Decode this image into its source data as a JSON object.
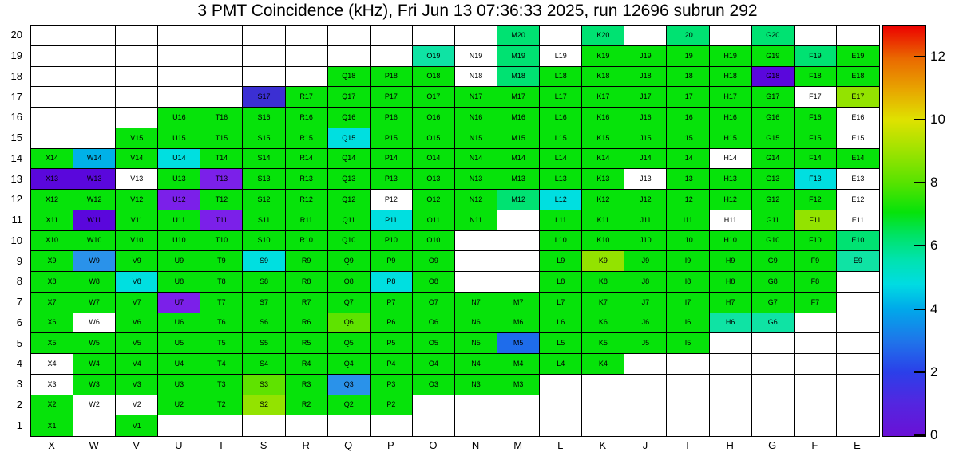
{
  "title": "3 PMT Coincidence (kHz), Fri Jun 13 07:36:33 2025, run 12696 subrun 292",
  "chart_data": {
    "type": "heatmap",
    "title": "3 PMT Coincidence (kHz), Fri Jun 13 07:36:33 2025, run 12696 subrun 292",
    "value_unit": "kHz",
    "columns": [
      "X",
      "W",
      "V",
      "U",
      "T",
      "S",
      "R",
      "Q",
      "P",
      "O",
      "N",
      "M",
      "L",
      "K",
      "J",
      "I",
      "H",
      "G",
      "F",
      "E"
    ],
    "rows": [
      20,
      19,
      18,
      17,
      16,
      15,
      14,
      13,
      12,
      11,
      10,
      9,
      8,
      7,
      6,
      5,
      4,
      3,
      2,
      1
    ],
    "palette": {
      "g": {
        "hex": "#06e30a",
        "value": 7.0
      },
      "sg": {
        "hex": "#00e272",
        "value": 6.0
      },
      "aq": {
        "hex": "#0fe3a4",
        "value": 5.4
      },
      "cy": {
        "hex": "#00dfe0",
        "value": 4.5
      },
      "lb": {
        "hex": "#00b1e8",
        "value": 3.8
      },
      "sb": {
        "hex": "#2a92ea",
        "value": 3.1
      },
      "bl": {
        "hex": "#1e6ceb",
        "value": 2.6
      },
      "ind": {
        "hex": "#3b2fd3",
        "value": 1.4
      },
      "pu": {
        "hex": "#7b20e9",
        "value": 1.0
      },
      "vi": {
        "hex": "#5a07dc",
        "value": 0.6
      },
      "yg": {
        "hex": "#93e300",
        "value": 8.6
      },
      "yg2": {
        "hex": "#5fe300",
        "value": 8.0
      },
      "w": {
        "hex": "#ffffff",
        "value": 0.0
      }
    },
    "cells": [
      [
        "M20",
        "sg"
      ],
      [
        "K20",
        "sg"
      ],
      [
        "I20",
        "sg"
      ],
      [
        "G20",
        "sg"
      ],
      [
        "O19",
        "aq"
      ],
      [
        "N19",
        "w"
      ],
      [
        "M19",
        "sg"
      ],
      [
        "L19",
        "w"
      ],
      [
        "K19",
        "g"
      ],
      [
        "J19",
        "g"
      ],
      [
        "I19",
        "g"
      ],
      [
        "H19",
        "g"
      ],
      [
        "G19",
        "g"
      ],
      [
        "F19",
        "sg"
      ],
      [
        "E19",
        "g"
      ],
      [
        "Q18",
        "g"
      ],
      [
        "P18",
        "g"
      ],
      [
        "O18",
        "g"
      ],
      [
        "N18",
        "w"
      ],
      [
        "M18",
        "sg"
      ],
      [
        "L18",
        "g"
      ],
      [
        "K18",
        "g"
      ],
      [
        "J18",
        "g"
      ],
      [
        "I18",
        "g"
      ],
      [
        "H18",
        "g"
      ],
      [
        "G18",
        "vi"
      ],
      [
        "F18",
        "g"
      ],
      [
        "E18",
        "g"
      ],
      [
        "S17",
        "ind"
      ],
      [
        "R17",
        "g"
      ],
      [
        "Q17",
        "g"
      ],
      [
        "P17",
        "g"
      ],
      [
        "O17",
        "g"
      ],
      [
        "N17",
        "g"
      ],
      [
        "M17",
        "g"
      ],
      [
        "L17",
        "g"
      ],
      [
        "K17",
        "g"
      ],
      [
        "J17",
        "g"
      ],
      [
        "I17",
        "g"
      ],
      [
        "H17",
        "g"
      ],
      [
        "G17",
        "g"
      ],
      [
        "F17",
        "w"
      ],
      [
        "E17",
        "yg"
      ],
      [
        "U16",
        "g"
      ],
      [
        "T16",
        "g"
      ],
      [
        "S16",
        "g"
      ],
      [
        "R16",
        "g"
      ],
      [
        "Q16",
        "g"
      ],
      [
        "P16",
        "g"
      ],
      [
        "O16",
        "g"
      ],
      [
        "N16",
        "g"
      ],
      [
        "M16",
        "g"
      ],
      [
        "L16",
        "g"
      ],
      [
        "K16",
        "g"
      ],
      [
        "J16",
        "g"
      ],
      [
        "I16",
        "g"
      ],
      [
        "H16",
        "g"
      ],
      [
        "G16",
        "g"
      ],
      [
        "F16",
        "g"
      ],
      [
        "E16",
        "w"
      ],
      [
        "V15",
        "g"
      ],
      [
        "U15",
        "g"
      ],
      [
        "T15",
        "g"
      ],
      [
        "S15",
        "g"
      ],
      [
        "R15",
        "g"
      ],
      [
        "Q15",
        "cy"
      ],
      [
        "P15",
        "g"
      ],
      [
        "O15",
        "g"
      ],
      [
        "N15",
        "g"
      ],
      [
        "M15",
        "g"
      ],
      [
        "L15",
        "g"
      ],
      [
        "K15",
        "g"
      ],
      [
        "J15",
        "g"
      ],
      [
        "I15",
        "g"
      ],
      [
        "H15",
        "g"
      ],
      [
        "G15",
        "g"
      ],
      [
        "F15",
        "g"
      ],
      [
        "E15",
        "w"
      ],
      [
        "X14",
        "g"
      ],
      [
        "W14",
        "lb"
      ],
      [
        "V14",
        "g"
      ],
      [
        "U14",
        "cy"
      ],
      [
        "T14",
        "g"
      ],
      [
        "S14",
        "g"
      ],
      [
        "R14",
        "g"
      ],
      [
        "Q14",
        "g"
      ],
      [
        "P14",
        "g"
      ],
      [
        "O14",
        "g"
      ],
      [
        "N14",
        "g"
      ],
      [
        "M14",
        "g"
      ],
      [
        "L14",
        "g"
      ],
      [
        "K14",
        "g"
      ],
      [
        "J14",
        "g"
      ],
      [
        "I14",
        "g"
      ],
      [
        "H14",
        "w"
      ],
      [
        "G14",
        "g"
      ],
      [
        "F14",
        "g"
      ],
      [
        "E14",
        "g"
      ],
      [
        "X13",
        "vi"
      ],
      [
        "W13",
        "vi"
      ],
      [
        "V13",
        "w"
      ],
      [
        "U13",
        "g"
      ],
      [
        "T13",
        "pu"
      ],
      [
        "S13",
        "g"
      ],
      [
        "R13",
        "g"
      ],
      [
        "Q13",
        "g"
      ],
      [
        "P13",
        "g"
      ],
      [
        "O13",
        "g"
      ],
      [
        "N13",
        "g"
      ],
      [
        "M13",
        "g"
      ],
      [
        "L13",
        "g"
      ],
      [
        "K13",
        "g"
      ],
      [
        "J13",
        "w"
      ],
      [
        "I13",
        "g"
      ],
      [
        "H13",
        "g"
      ],
      [
        "G13",
        "g"
      ],
      [
        "F13",
        "cy"
      ],
      [
        "E13",
        "w"
      ],
      [
        "X12",
        "g"
      ],
      [
        "W12",
        "g"
      ],
      [
        "V12",
        "g"
      ],
      [
        "U12",
        "pu"
      ],
      [
        "T12",
        "g"
      ],
      [
        "S12",
        "g"
      ],
      [
        "R12",
        "g"
      ],
      [
        "Q12",
        "g"
      ],
      [
        "P12",
        "w"
      ],
      [
        "O12",
        "g"
      ],
      [
        "N12",
        "g"
      ],
      [
        "M12",
        "sg"
      ],
      [
        "L12",
        "cy"
      ],
      [
        "K12",
        "g"
      ],
      [
        "J12",
        "g"
      ],
      [
        "I12",
        "g"
      ],
      [
        "H12",
        "g"
      ],
      [
        "G12",
        "g"
      ],
      [
        "F12",
        "g"
      ],
      [
        "E12",
        "w"
      ],
      [
        "X11",
        "g"
      ],
      [
        "W11",
        "vi"
      ],
      [
        "V11",
        "g"
      ],
      [
        "U11",
        "g"
      ],
      [
        "T11",
        "pu"
      ],
      [
        "S11",
        "g"
      ],
      [
        "R11",
        "g"
      ],
      [
        "Q11",
        "g"
      ],
      [
        "P11",
        "cy"
      ],
      [
        "O11",
        "g"
      ],
      [
        "N11",
        "g"
      ],
      [
        "L11",
        "g"
      ],
      [
        "K11",
        "g"
      ],
      [
        "J11",
        "g"
      ],
      [
        "I11",
        "g"
      ],
      [
        "H11",
        "w"
      ],
      [
        "G11",
        "g"
      ],
      [
        "F11",
        "yg"
      ],
      [
        "E11",
        "w"
      ],
      [
        "X10",
        "g"
      ],
      [
        "W10",
        "g"
      ],
      [
        "V10",
        "g"
      ],
      [
        "U10",
        "g"
      ],
      [
        "T10",
        "g"
      ],
      [
        "S10",
        "g"
      ],
      [
        "R10",
        "g"
      ],
      [
        "Q10",
        "g"
      ],
      [
        "P10",
        "g"
      ],
      [
        "O10",
        "g"
      ],
      [
        "L10",
        "g"
      ],
      [
        "K10",
        "g"
      ],
      [
        "J10",
        "g"
      ],
      [
        "I10",
        "g"
      ],
      [
        "H10",
        "g"
      ],
      [
        "G10",
        "g"
      ],
      [
        "F10",
        "g"
      ],
      [
        "E10",
        "sg"
      ],
      [
        "X9",
        "g"
      ],
      [
        "W9",
        "sb"
      ],
      [
        "V9",
        "g"
      ],
      [
        "U9",
        "g"
      ],
      [
        "T9",
        "g"
      ],
      [
        "S9",
        "cy"
      ],
      [
        "R9",
        "g"
      ],
      [
        "Q9",
        "g"
      ],
      [
        "P9",
        "g"
      ],
      [
        "O9",
        "g"
      ],
      [
        "L9",
        "g"
      ],
      [
        "K9",
        "yg"
      ],
      [
        "J9",
        "g"
      ],
      [
        "I9",
        "g"
      ],
      [
        "H9",
        "g"
      ],
      [
        "G9",
        "g"
      ],
      [
        "F9",
        "g"
      ],
      [
        "E9",
        "aq"
      ],
      [
        "X8",
        "g"
      ],
      [
        "W8",
        "g"
      ],
      [
        "V8",
        "cy"
      ],
      [
        "U8",
        "g"
      ],
      [
        "T8",
        "g"
      ],
      [
        "S8",
        "g"
      ],
      [
        "R8",
        "g"
      ],
      [
        "Q8",
        "g"
      ],
      [
        "P8",
        "cy"
      ],
      [
        "O8",
        "g"
      ],
      [
        "L8",
        "g"
      ],
      [
        "K8",
        "g"
      ],
      [
        "J8",
        "g"
      ],
      [
        "I8",
        "g"
      ],
      [
        "H8",
        "g"
      ],
      [
        "G8",
        "g"
      ],
      [
        "F8",
        "g"
      ],
      [
        "X7",
        "g"
      ],
      [
        "W7",
        "g"
      ],
      [
        "V7",
        "g"
      ],
      [
        "U7",
        "pu"
      ],
      [
        "T7",
        "g"
      ],
      [
        "S7",
        "g"
      ],
      [
        "R7",
        "g"
      ],
      [
        "Q7",
        "g"
      ],
      [
        "P7",
        "g"
      ],
      [
        "O7",
        "g"
      ],
      [
        "N7",
        "g"
      ],
      [
        "M7",
        "g"
      ],
      [
        "L7",
        "g"
      ],
      [
        "K7",
        "g"
      ],
      [
        "J7",
        "g"
      ],
      [
        "I7",
        "g"
      ],
      [
        "H7",
        "g"
      ],
      [
        "G7",
        "g"
      ],
      [
        "F7",
        "g"
      ],
      [
        "X6",
        "g"
      ],
      [
        "W6",
        "w"
      ],
      [
        "V6",
        "g"
      ],
      [
        "U6",
        "g"
      ],
      [
        "T6",
        "g"
      ],
      [
        "S6",
        "g"
      ],
      [
        "R6",
        "g"
      ],
      [
        "Q6",
        "yg2"
      ],
      [
        "P6",
        "g"
      ],
      [
        "O6",
        "g"
      ],
      [
        "N6",
        "g"
      ],
      [
        "M6",
        "g"
      ],
      [
        "L6",
        "g"
      ],
      [
        "K6",
        "g"
      ],
      [
        "J6",
        "g"
      ],
      [
        "I6",
        "g"
      ],
      [
        "H6",
        "aq"
      ],
      [
        "G6",
        "aq"
      ],
      [
        "X5",
        "g"
      ],
      [
        "W5",
        "g"
      ],
      [
        "V5",
        "g"
      ],
      [
        "U5",
        "g"
      ],
      [
        "T5",
        "g"
      ],
      [
        "S5",
        "g"
      ],
      [
        "R5",
        "g"
      ],
      [
        "Q5",
        "g"
      ],
      [
        "P5",
        "g"
      ],
      [
        "O5",
        "g"
      ],
      [
        "N5",
        "g"
      ],
      [
        "M5",
        "bl"
      ],
      [
        "L5",
        "g"
      ],
      [
        "K5",
        "g"
      ],
      [
        "J5",
        "g"
      ],
      [
        "I5",
        "g"
      ],
      [
        "X4",
        "w"
      ],
      [
        "W4",
        "g"
      ],
      [
        "V4",
        "g"
      ],
      [
        "U4",
        "g"
      ],
      [
        "T4",
        "g"
      ],
      [
        "S4",
        "g"
      ],
      [
        "R4",
        "g"
      ],
      [
        "Q4",
        "g"
      ],
      [
        "P4",
        "g"
      ],
      [
        "O4",
        "g"
      ],
      [
        "N4",
        "g"
      ],
      [
        "M4",
        "g"
      ],
      [
        "L4",
        "g"
      ],
      [
        "K4",
        "g"
      ],
      [
        "X3",
        "w"
      ],
      [
        "W3",
        "g"
      ],
      [
        "V3",
        "g"
      ],
      [
        "U3",
        "g"
      ],
      [
        "T3",
        "g"
      ],
      [
        "S3",
        "yg2"
      ],
      [
        "R3",
        "g"
      ],
      [
        "Q3",
        "sb"
      ],
      [
        "P3",
        "g"
      ],
      [
        "O3",
        "g"
      ],
      [
        "N3",
        "g"
      ],
      [
        "M3",
        "g"
      ],
      [
        "X2",
        "g"
      ],
      [
        "W2",
        "w"
      ],
      [
        "V2",
        "w"
      ],
      [
        "U2",
        "g"
      ],
      [
        "T2",
        "g"
      ],
      [
        "S2",
        "yg"
      ],
      [
        "R2",
        "g"
      ],
      [
        "Q2",
        "g"
      ],
      [
        "P2",
        "g"
      ],
      [
        "X1",
        "g"
      ],
      [
        "V1",
        "g"
      ]
    ],
    "colorbar": {
      "min": 0,
      "max": 13,
      "ticks": [
        0,
        2,
        4,
        6,
        8,
        10,
        12
      ],
      "gradient": [
        [
          0.0,
          "#6a11d6"
        ],
        [
          0.08,
          "#5326e0"
        ],
        [
          0.155,
          "#2b3fe9"
        ],
        [
          0.23,
          "#1f74ea"
        ],
        [
          0.31,
          "#00a9ea"
        ],
        [
          0.37,
          "#00dce2"
        ],
        [
          0.43,
          "#00e3ae"
        ],
        [
          0.49,
          "#00e364"
        ],
        [
          0.545,
          "#06e30a"
        ],
        [
          0.615,
          "#55e300"
        ],
        [
          0.69,
          "#9ae300"
        ],
        [
          0.77,
          "#dfe200"
        ],
        [
          0.845,
          "#e8a400"
        ],
        [
          0.92,
          "#ea6900"
        ],
        [
          0.962,
          "#eb3100"
        ],
        [
          1.0,
          "#ec0000"
        ]
      ]
    }
  }
}
